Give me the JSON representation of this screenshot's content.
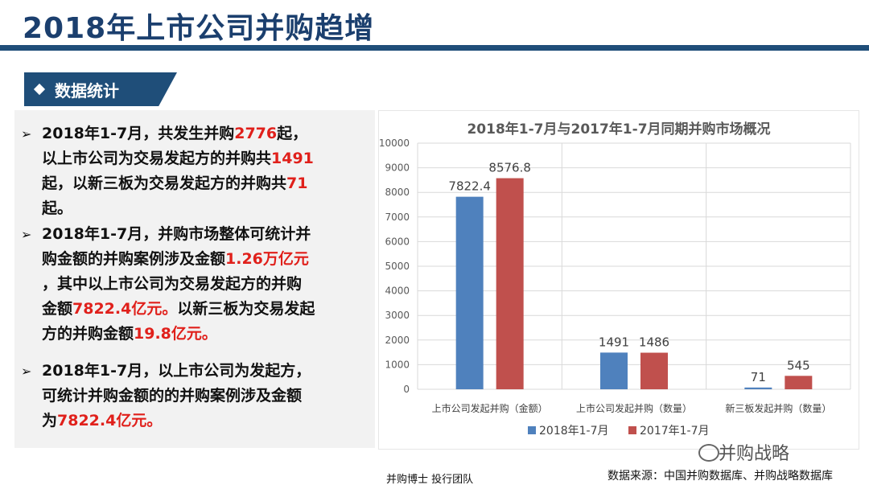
{
  "header": {
    "title": "2018年上市公司并购趋增"
  },
  "section": {
    "label": "数据统计"
  },
  "bullets": [
    {
      "lines": [
        [
          {
            "t": "2018年1-7月，共发生并购"
          },
          {
            "t": "2776",
            "r": 1
          },
          {
            "t": "起，"
          }
        ],
        [
          {
            "t": "以上市公司为交易发起方的并购共"
          },
          {
            "t": "1491",
            "r": 1
          }
        ],
        [
          {
            "t": "起，以新三板为交易发起方的并购共"
          },
          {
            "t": "71",
            "r": 1
          }
        ],
        [
          {
            "t": "起。"
          }
        ]
      ]
    },
    {
      "lines": [
        [
          {
            "t": "2018年1-7月，并购市场整体可统计并"
          }
        ],
        [
          {
            "t": "购金额的并购案例涉及金额"
          },
          {
            "t": "1.26万亿元",
            "r": 1
          }
        ],
        [
          {
            "t": "，其中以上市公司为交易发起方的并购"
          }
        ],
        [
          {
            "t": "金额"
          },
          {
            "t": "7822.4亿元。",
            "r": 1
          },
          {
            "t": "以新三板为交易发起"
          }
        ],
        [
          {
            "t": "方的并购金额"
          },
          {
            "t": "19.8亿元。",
            "r": 1
          }
        ]
      ]
    },
    {
      "lines": [
        [
          {
            "t": "2018年1-7月，以上市公司为发起方，"
          }
        ],
        [
          {
            "t": "可统计并购金额的的并购案例涉及金额"
          }
        ],
        [
          {
            "t": "为"
          },
          {
            "t": "7822.4亿元。",
            "r": 1
          }
        ]
      ]
    }
  ],
  "chart_data": {
    "type": "bar",
    "title": "2018年1-7月与2017年1-7月同期并购市场概况",
    "categories": [
      "上市公司发起并购（金额）",
      "上市公司发起并购（数量）",
      "新三板发起并购（数量）"
    ],
    "series": [
      {
        "name": "2018年1-7月",
        "values": [
          7822.4,
          1491,
          71
        ],
        "labels": [
          "7822.4",
          "1491",
          "71"
        ],
        "color": "#4f81bd"
      },
      {
        "name": "2017年1-7月",
        "values": [
          8576.8,
          1486,
          545
        ],
        "labels": [
          "8576.8",
          "1486",
          "545"
        ],
        "color": "#c0504d"
      }
    ],
    "ylim": [
      0,
      10000
    ],
    "yticks": [
      "0",
      "1000",
      "2000",
      "3000",
      "4000",
      "5000",
      "6000",
      "7000",
      "8000",
      "9000",
      "10000"
    ],
    "grid": true,
    "legend": "bottom"
  },
  "footer": {
    "team": "并购博士 投行团队",
    "source": "数据来源：中国并购数据库、并购战略数据库",
    "watermark": "并购战略"
  }
}
